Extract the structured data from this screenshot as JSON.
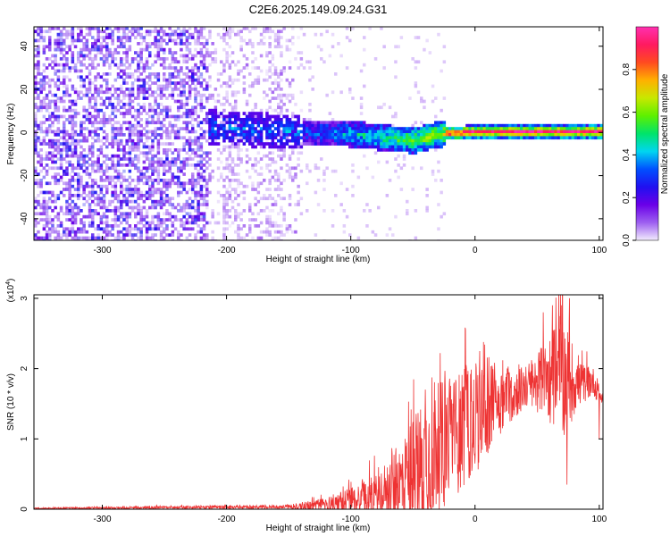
{
  "title": "C2E6.2025.149.09.24.G31",
  "chart_data": [
    {
      "type": "heatmap",
      "xlabel": "Height of straight line (km)",
      "ylabel": "Frequency (Hz)",
      "xlim": [
        -355,
        103
      ],
      "ylim": [
        -50,
        49
      ],
      "x_ticks": [
        -300,
        -200,
        -100,
        0,
        100
      ],
      "y_ticks": [
        -40,
        -20,
        0,
        20,
        40
      ],
      "colorbar": {
        "label": "Normalized spectral amplitude",
        "range": [
          0,
          1
        ],
        "ticks": [
          0.0,
          0.2,
          0.4,
          0.6,
          0.8
        ],
        "tick_labels": [
          "0.0",
          "0.2",
          "0.4",
          "0.6",
          "0.8"
        ],
        "colormap": [
          "#f2ecfd",
          "#9d5ff0",
          "#6a00e8",
          "#2010f0",
          "#0050ff",
          "#00d6f0",
          "#00e46a",
          "#5ef000",
          "#c8e800",
          "#ffb000",
          "#ff4a20",
          "#ff1a60",
          "#ff30b0"
        ]
      },
      "regions": [
        {
          "x": [
            -355,
            -215
          ],
          "description_level": 0.22
        },
        {
          "x": [
            -215,
            -140
          ],
          "description_level": 0.12
        },
        {
          "x": [
            -140,
            -25
          ],
          "description_level": 0.45
        },
        {
          "x": [
            -25,
            103
          ],
          "description_level": 0.9
        }
      ],
      "ridge_frequency_hz": [
        {
          "x": -210,
          "y": 3
        },
        {
          "x": -150,
          "y": 1
        },
        {
          "x": -100,
          "y": 0
        },
        {
          "x": -70,
          "y": -2
        },
        {
          "x": -50,
          "y": -3
        },
        {
          "x": -30,
          "y": 0
        },
        {
          "x": 0,
          "y": 1
        },
        {
          "x": 50,
          "y": 1
        },
        {
          "x": 100,
          "y": 1
        }
      ]
    },
    {
      "type": "line",
      "xlabel": "Height of straight line (km)",
      "ylabel": "SNR (10 * v/v)",
      "y_exponent_label": "(x10",
      "y_exponent_power": "4",
      "y_exponent_close": ")",
      "xlim": [
        -355,
        103
      ],
      "ylim": [
        0,
        3.05
      ],
      "x_ticks": [
        -300,
        -200,
        -100,
        0,
        100
      ],
      "y_ticks": [
        0,
        1,
        2,
        3
      ],
      "line_color": "#ee3333",
      "envelope": [
        {
          "x": -355,
          "base": 0.01,
          "noise": 0.01
        },
        {
          "x": -250,
          "base": 0.02,
          "noise": 0.02
        },
        {
          "x": -150,
          "base": 0.03,
          "noise": 0.03
        },
        {
          "x": -120,
          "base": 0.06,
          "noise": 0.1
        },
        {
          "x": -100,
          "base": 0.1,
          "noise": 0.2
        },
        {
          "x": -80,
          "base": 0.15,
          "noise": 0.3
        },
        {
          "x": -60,
          "base": 0.3,
          "noise": 0.6
        },
        {
          "x": -40,
          "base": 0.6,
          "noise": 1.0
        },
        {
          "x": -20,
          "base": 0.9,
          "noise": 0.9
        },
        {
          "x": 0,
          "base": 1.2,
          "noise": 0.8
        },
        {
          "x": 20,
          "base": 1.5,
          "noise": 0.5
        },
        {
          "x": 40,
          "base": 1.7,
          "noise": 0.3
        },
        {
          "x": 55,
          "base": 1.8,
          "noise": 0.5
        },
        {
          "x": 70,
          "base": 1.8,
          "noise": 0.9
        },
        {
          "x": 85,
          "base": 1.75,
          "noise": 0.3
        },
        {
          "x": 95,
          "base": 1.8,
          "noise": 0.2
        },
        {
          "x": 103,
          "base": 1.5,
          "noise": 0.1
        }
      ],
      "peaks": [
        {
          "x": -28,
          "y": 2.22
        },
        {
          "x": 55,
          "y": 2.8
        },
        {
          "x": 69,
          "y": 3.05
        },
        {
          "x": 76,
          "y": 3.0
        },
        {
          "x": 74,
          "y": 0.35
        },
        {
          "x": 100,
          "y": 1.0
        }
      ]
    }
  ]
}
